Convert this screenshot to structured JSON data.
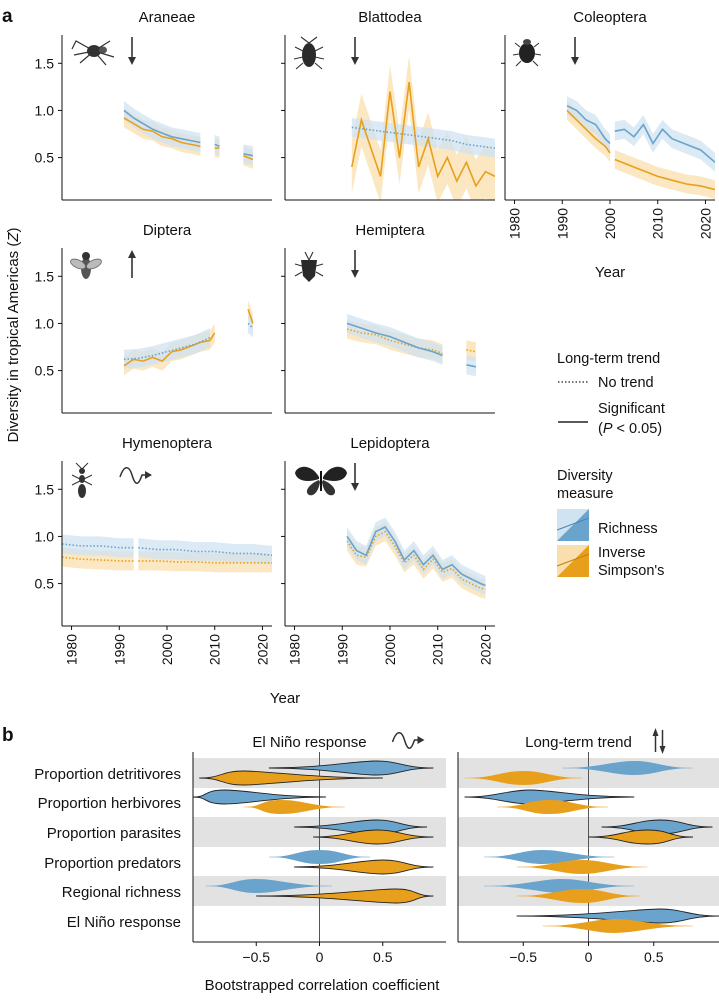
{
  "chart_data": {
    "type": "line",
    "colors": {
      "richness": "#6aa3cc",
      "richness_band": "#cfe3f1",
      "inverse_simpson": "#e8a01c",
      "inverse_simpson_band": "#f9dfae",
      "axis": "#111111",
      "stripe": "#e2e2e2",
      "zero_line": "#555555"
    },
    "panel_a": {
      "letter": "a",
      "ylabel": "Diversity in tropical Americas (Z)",
      "ylabel_parts": {
        "prefix": "Diversity in tropical Americas (",
        "italic": "Z",
        "suffix": ")"
      },
      "xlabel": "Year",
      "yticks": [
        "0.5",
        "1.0",
        "1.5"
      ],
      "ytick_values": [
        0.5,
        1.0,
        1.5
      ],
      "ylim": [
        0.05,
        1.8
      ],
      "xticks": [
        "1980",
        "1990",
        "2000",
        "2010",
        "2020"
      ],
      "xtick_values": [
        1980,
        1990,
        2000,
        2010,
        2020
      ],
      "xlim": [
        1978,
        2022
      ],
      "panels": [
        {
          "name": "Araneae",
          "trend": "down",
          "richness": {
            "trend": "significant",
            "segments": [
              {
                "x": [
                  1991,
                  1993,
                  1995,
                  1997,
                  1999,
                  2001,
                  2003,
                  2005,
                  2007
                ],
                "y": [
                  1.0,
                  0.92,
                  0.86,
                  0.8,
                  0.76,
                  0.72,
                  0.7,
                  0.68,
                  0.66
                ]
              },
              {
                "x": [
                  2010,
                  2011
                ],
                "y": [
                  0.64,
                  0.62
                ]
              },
              {
                "x": [
                  2016,
                  2018
                ],
                "y": [
                  0.54,
                  0.52
                ]
              }
            ]
          },
          "inverse_simpson": {
            "trend": "significant",
            "segments": [
              {
                "x": [
                  1991,
                  1993,
                  1995,
                  1997,
                  1999,
                  2001,
                  2003,
                  2005,
                  2007
                ],
                "y": [
                  0.92,
                  0.86,
                  0.8,
                  0.78,
                  0.72,
                  0.7,
                  0.66,
                  0.64,
                  0.62
                ]
              },
              {
                "x": [
                  2010,
                  2011
                ],
                "y": [
                  0.6,
                  0.6
                ]
              },
              {
                "x": [
                  2016,
                  2018
                ],
                "y": [
                  0.52,
                  0.48
                ]
              }
            ]
          }
        },
        {
          "name": "Blattodea",
          "trend": "down",
          "richness": {
            "trend": "none",
            "segments": [
              {
                "x": [
                  1992,
                  1995,
                  1998,
                  2001,
                  2004,
                  2007,
                  2010,
                  2013,
                  2016,
                  2019,
                  2022
                ],
                "y": [
                  0.82,
                  0.8,
                  0.78,
                  0.76,
                  0.74,
                  0.72,
                  0.7,
                  0.68,
                  0.64,
                  0.62,
                  0.6
                ]
              }
            ]
          },
          "inverse_simpson": {
            "trend": "significant",
            "segments": [
              {
                "x": [
                  1992,
                  1994,
                  1996,
                  1998,
                  2000,
                  2002,
                  2004,
                  2006,
                  2008,
                  2010,
                  2012,
                  2014,
                  2016,
                  2018,
                  2020,
                  2022
                ],
                "y": [
                  0.4,
                  0.9,
                  0.6,
                  0.3,
                  1.2,
                  0.5,
                  1.3,
                  0.4,
                  0.7,
                  0.3,
                  0.5,
                  0.25,
                  0.45,
                  0.2,
                  0.35,
                  0.3
                ]
              }
            ]
          }
        },
        {
          "name": "Coleoptera",
          "trend": "down",
          "richness": {
            "trend": "significant",
            "segments": [
              {
                "x": [
                  1991,
                  1993,
                  1995,
                  1997,
                  1999,
                  2000
                ],
                "y": [
                  1.05,
                  1.0,
                  0.9,
                  0.85,
                  0.7,
                  0.65
                ]
              },
              {
                "x": [
                  2001,
                  2003,
                  2005,
                  2007,
                  2009,
                  2011,
                  2013,
                  2015,
                  2017,
                  2019,
                  2022
                ],
                "y": [
                  0.78,
                  0.8,
                  0.72,
                  0.85,
                  0.65,
                  0.8,
                  0.7,
                  0.66,
                  0.62,
                  0.58,
                  0.45
                ]
              }
            ]
          },
          "inverse_simpson": {
            "trend": "significant",
            "segments": [
              {
                "x": [
                  1991,
                  1993,
                  1995,
                  1997,
                  1999,
                  2000
                ],
                "y": [
                  1.0,
                  0.9,
                  0.8,
                  0.7,
                  0.62,
                  0.55
                ]
              },
              {
                "x": [
                  2001,
                  2004,
                  2007,
                  2010,
                  2013,
                  2016,
                  2019,
                  2022
                ],
                "y": [
                  0.48,
                  0.42,
                  0.36,
                  0.3,
                  0.26,
                  0.22,
                  0.2,
                  0.16
                ]
              }
            ]
          }
        },
        {
          "name": "Diptera",
          "trend": "up",
          "richness": {
            "trend": "none",
            "segments": [
              {
                "x": [
                  1991,
                  1994,
                  1997,
                  2000,
                  2003,
                  2006,
                  2009
                ],
                "y": [
                  0.62,
                  0.63,
                  0.66,
                  0.7,
                  0.74,
                  0.78,
                  0.85
                ]
              },
              {
                "x": [
                  2017,
                  2018
                ],
                "y": [
                  1.0,
                  0.95
                ]
              }
            ]
          },
          "inverse_simpson": {
            "trend": "significant",
            "segments": [
              {
                "x": [
                  1991,
                  1993,
                  1995,
                  1997,
                  1999,
                  2001,
                  2003,
                  2005,
                  2007,
                  2009,
                  2010
                ],
                "y": [
                  0.55,
                  0.62,
                  0.6,
                  0.64,
                  0.6,
                  0.7,
                  0.72,
                  0.76,
                  0.8,
                  0.82,
                  0.9
                ]
              },
              {
                "x": [
                  2017,
                  2018
                ],
                "y": [
                  1.15,
                  1.0
                ]
              }
            ]
          }
        },
        {
          "name": "Hemiptera",
          "trend": "down",
          "richness": {
            "trend": "significant",
            "segments": [
              {
                "x": [
                  1991,
                  1994,
                  1997,
                  2000,
                  2003,
                  2006,
                  2009,
                  2011
                ],
                "y": [
                  1.0,
                  0.95,
                  0.9,
                  0.86,
                  0.8,
                  0.74,
                  0.7,
                  0.66
                ]
              },
              {
                "x": [
                  2016,
                  2018
                ],
                "y": [
                  0.56,
                  0.54
                ]
              }
            ]
          },
          "inverse_simpson": {
            "trend": "none",
            "segments": [
              {
                "x": [
                  1991,
                  1994,
                  1997,
                  2000,
                  2003,
                  2006,
                  2009,
                  2011
                ],
                "y": [
                  0.94,
                  0.9,
                  0.88,
                  0.82,
                  0.78,
                  0.74,
                  0.72,
                  0.68
                ]
              },
              {
                "x": [
                  2016,
                  2018
                ],
                "y": [
                  0.72,
                  0.7
                ]
              }
            ]
          }
        },
        {
          "name": "Hymenoptera",
          "trend": "wavy",
          "richness": {
            "trend": "none",
            "segments": [
              {
                "x": [
                  1978,
                  1982,
                  1986,
                  1990,
                  1993
                ],
                "y": [
                  0.92,
                  0.9,
                  0.9,
                  0.88,
                  0.88
                ]
              },
              {
                "x": [
                  1994,
                  1998,
                  2002,
                  2006,
                  2010,
                  2014,
                  2018,
                  2022
                ],
                "y": [
                  0.88,
                  0.86,
                  0.86,
                  0.84,
                  0.84,
                  0.82,
                  0.82,
                  0.8
                ]
              }
            ]
          },
          "inverse_simpson": {
            "trend": "none",
            "segments": [
              {
                "x": [
                  1978,
                  1982,
                  1986,
                  1990,
                  1993
                ],
                "y": [
                  0.78,
                  0.76,
                  0.75,
                  0.74,
                  0.74
                ]
              },
              {
                "x": [
                  1994,
                  1998,
                  2002,
                  2006,
                  2010,
                  2014,
                  2018,
                  2022
                ],
                "y": [
                  0.74,
                  0.74,
                  0.73,
                  0.73,
                  0.72,
                  0.72,
                  0.72,
                  0.72
                ]
              }
            ]
          }
        },
        {
          "name": "Lepidoptera",
          "trend": "down",
          "richness": {
            "trend": "significant",
            "segments": [
              {
                "x": [
                  1991,
                  1993,
                  1995,
                  1997,
                  1999,
                  2001,
                  2003,
                  2005,
                  2007,
                  2009,
                  2011,
                  2013,
                  2015,
                  2017,
                  2019,
                  2020
                ],
                "y": [
                  1.0,
                  0.85,
                  0.8,
                  1.05,
                  1.1,
                  0.95,
                  0.75,
                  0.85,
                  0.7,
                  0.8,
                  0.65,
                  0.7,
                  0.6,
                  0.55,
                  0.5,
                  0.48
                ]
              }
            ]
          },
          "inverse_simpson": {
            "trend": "none",
            "segments": [
              {
                "x": [
                  1991,
                  1993,
                  1995,
                  1997,
                  1999,
                  2001,
                  2003,
                  2005,
                  2007,
                  2009,
                  2011,
                  2013,
                  2015,
                  2017,
                  2019,
                  2020
                ],
                "y": [
                  0.95,
                  0.8,
                  0.78,
                  1.0,
                  1.05,
                  0.9,
                  0.72,
                  0.8,
                  0.65,
                  0.76,
                  0.62,
                  0.66,
                  0.55,
                  0.5,
                  0.45,
                  0.44
                ]
              }
            ]
          }
        }
      ]
    },
    "legend": {
      "trend_title": "Long-term trend",
      "no_trend": "No trend",
      "significant_line1": "Significant",
      "significant_line2": "(P < 0.05)",
      "significant_line2_parts": {
        "prefix": "(",
        "italic": "P",
        "suffix": " < 0.05)"
      },
      "measure_title_line1": "Diversity",
      "measure_title_line2": "measure",
      "richness": "Richness",
      "inverse_simpson_line1": "Inverse",
      "inverse_simpson_line2": "Simpson's"
    },
    "panel_b": {
      "letter": "b",
      "xlabel": "Bootstrapped correlation coefficient",
      "xticks": [
        "−0.5",
        "0",
        "0.5"
      ],
      "xtick_values": [
        -0.5,
        0,
        0.5
      ],
      "xlim": [
        -1.0,
        1.0
      ],
      "rows": [
        "Proportion detritivores",
        "Proportion herbivores",
        "Proportion parasites",
        "Proportion predators",
        "Regional richness",
        "El Niño response"
      ],
      "subpanels": [
        {
          "title": "El Niño response",
          "icon": "wavy",
          "series": [
            {
              "measure": "richness",
              "values": [
                0.45,
                -0.75,
                0.45,
                0.0,
                -0.5,
                null
              ],
              "lo": [
                -0.4,
                -1.0,
                -0.2,
                -0.4,
                -0.9,
                null
              ],
              "hi": [
                0.9,
                0.05,
                0.85,
                0.4,
                0.1,
                null
              ],
              "significant": [
                true,
                true,
                true,
                false,
                false,
                null
              ]
            },
            {
              "measure": "inverse_simpson",
              "values": [
                -0.6,
                -0.3,
                0.45,
                0.5,
                0.6,
                null
              ],
              "lo": [
                -0.95,
                -0.6,
                -0.05,
                -0.2,
                -0.5,
                null
              ],
              "hi": [
                0.5,
                0.2,
                0.9,
                0.9,
                0.9,
                null
              ],
              "significant": [
                true,
                false,
                true,
                true,
                true,
                null
              ]
            }
          ]
        },
        {
          "title": "Long-term trend",
          "icon": "updown",
          "series": [
            {
              "measure": "richness",
              "values": [
                0.35,
                -0.45,
                0.55,
                -0.35,
                -0.2,
                0.55
              ],
              "lo": [
                -0.2,
                -0.95,
                0.1,
                -0.8,
                -0.8,
                -0.55
              ],
              "hi": [
                0.8,
                0.35,
                0.95,
                0.2,
                0.35,
                1.0
              ],
              "significant": [
                false,
                true,
                true,
                false,
                false,
                true
              ]
            },
            {
              "measure": "inverse_simpson",
              "values": [
                -0.5,
                -0.3,
                0.45,
                -0.05,
                -0.05,
                0.2
              ],
              "lo": [
                -0.95,
                -0.7,
                0.0,
                -0.55,
                -0.55,
                -0.35
              ],
              "hi": [
                -0.05,
                0.15,
                0.8,
                0.45,
                0.4,
                0.8
              ],
              "significant": [
                false,
                false,
                true,
                false,
                false,
                false
              ]
            }
          ]
        }
      ]
    }
  }
}
